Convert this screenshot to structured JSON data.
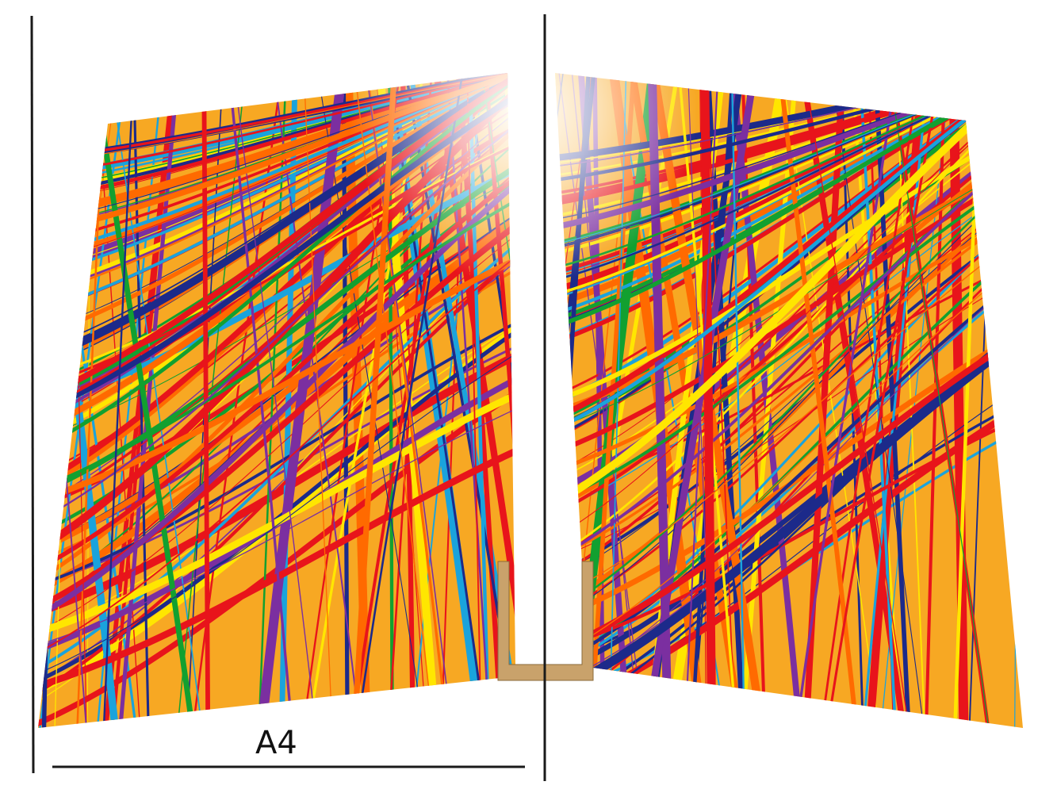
{
  "dimension_label": "A4",
  "colors": {
    "page_base": "#f7a823",
    "page_light": "#ffc93a",
    "stripes": [
      "#e8141b",
      "#e8141b",
      "#e8141b",
      "#ffe600",
      "#12a030",
      "#1aa3dc",
      "#7b2fa0",
      "#1c2a8a",
      "#ff6a00"
    ],
    "guide_line": "#1a1a1a",
    "stand": "#c9a26b"
  }
}
